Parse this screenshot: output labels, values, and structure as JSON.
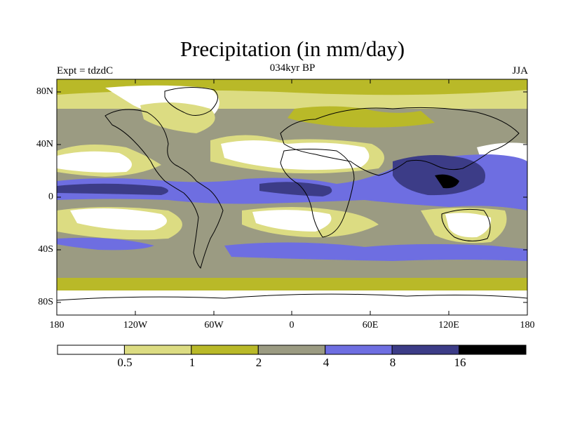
{
  "title": "Precipitation (in mm/day)",
  "left_label": "Expt = tdzdC",
  "center_label": "034kyr BP",
  "right_label": "JJA",
  "latitude_labels": [
    "80N",
    "40N",
    "0",
    "40S",
    "80S"
  ],
  "longitude_labels": [
    "180",
    "120W",
    "60W",
    "0",
    "60E",
    "120E",
    "180"
  ],
  "colorbar": {
    "tick_labels": [
      "0.5",
      "1",
      "2",
      "4",
      "8",
      "16"
    ],
    "bins": [
      {
        "range": "< 0.5",
        "color": "#ffffff"
      },
      {
        "range": "0.5-1",
        "color": "#dcdc82"
      },
      {
        "range": "1-2",
        "color": "#b9b928"
      },
      {
        "range": "2-4",
        "color": "#9b9b82"
      },
      {
        "range": "4-8",
        "color": "#6e6ee1"
      },
      {
        "range": "8-16",
        "color": "#3c3c87"
      },
      {
        "range": "> 16",
        "color": "#000000"
      }
    ]
  },
  "colors": {
    "ocean_base": "#9b9b82",
    "coastline": "#000000"
  }
}
